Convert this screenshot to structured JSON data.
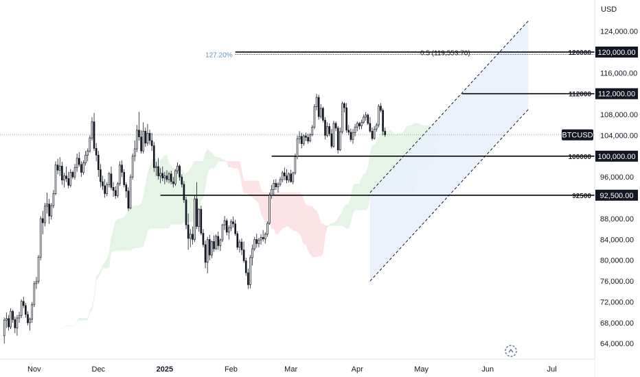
{
  "currency": "USD",
  "symbol": "BTCUSD",
  "colors": {
    "candle": "#131722",
    "cloud_green": "#e6f4e8",
    "cloud_red": "#fbe3e6",
    "channel_fill": "#e8f0fc",
    "line": "#000000",
    "grid": "#e0e3eb",
    "fib_blue": "#6a8fc8"
  },
  "chart_data": {
    "type": "candlestick",
    "ylim": [
      61000,
      130000
    ],
    "y_ticks": [
      {
        "value": 64000,
        "label": "64,000.00"
      },
      {
        "value": 68000,
        "label": "68,000.00"
      },
      {
        "value": 72000,
        "label": "72,000.00"
      },
      {
        "value": 76000,
        "label": "76,000.00"
      },
      {
        "value": 80000,
        "label": "80,000.00"
      },
      {
        "value": 84000,
        "label": "84,000.00"
      },
      {
        "value": 88000,
        "label": "88,000.00"
      },
      {
        "value": 96000,
        "label": "96,000.00"
      },
      {
        "value": 104000,
        "label": "104,000.00"
      },
      {
        "value": 108000,
        "label": "108,000.00"
      },
      {
        "value": 116000,
        "label": "116,000.00"
      },
      {
        "value": 124000,
        "label": "124,000.00"
      }
    ],
    "x_ticks": [
      {
        "label": "Nov",
        "day": 1,
        "bold": false
      },
      {
        "label": "Dec",
        "day": 31,
        "bold": false
      },
      {
        "label": "2025",
        "day": 62,
        "bold": true
      },
      {
        "label": "Feb",
        "day": 93,
        "bold": false
      },
      {
        "label": "Mar",
        "day": 121,
        "bold": false
      },
      {
        "label": "Apr",
        "day": 152,
        "bold": false
      },
      {
        "label": "May",
        "day": 182,
        "bold": false
      },
      {
        "label": "Jun",
        "day": 213,
        "bold": false
      },
      {
        "label": "Jul",
        "day": 243,
        "bold": false
      }
    ],
    "x_day_range": [
      -15,
      263
    ],
    "levels": [
      {
        "value": 120000,
        "label": "120000",
        "tag": "120,000.00",
        "start_day": 95
      },
      {
        "value": 112000,
        "label": "112000",
        "tag": "112,000.00",
        "start_day": 201
      },
      {
        "value": 100000,
        "label": "100000",
        "tag": "100,000.00",
        "start_day": 112
      },
      {
        "value": 92500,
        "label": "92500",
        "tag": "92,500.00",
        "start_day": 60
      }
    ],
    "fibonacci": {
      "value": 119553.7,
      "left_label": "127.20%",
      "center_label": "0.5 (119,553.70)",
      "start_day": 95
    },
    "channel": {
      "start_day": 158,
      "end_day": 232,
      "lower_start": 76000,
      "lower_end": 109000,
      "upper_start": 93000,
      "upper_end": 126000
    },
    "last_price": 104100,
    "ohlc": [
      [
        65500,
        69000,
        64000,
        68500
      ],
      [
        68500,
        70000,
        67000,
        68800
      ],
      [
        68800,
        69500,
        66500,
        67200
      ],
      [
        67200,
        70800,
        66800,
        70200
      ],
      [
        70200,
        70500,
        68000,
        68600
      ],
      [
        68600,
        69200,
        66000,
        67000
      ],
      [
        67000,
        69500,
        65500,
        68900
      ],
      [
        68900,
        70100,
        68000,
        69400
      ],
      [
        69400,
        72500,
        68900,
        72100
      ],
      [
        72100,
        73000,
        70800,
        71300
      ],
      [
        71300,
        71800,
        69000,
        69600
      ],
      [
        69600,
        70200,
        67500,
        68000
      ],
      [
        68000,
        69000,
        66500,
        68700
      ],
      [
        68700,
        72000,
        68000,
        71500
      ],
      [
        71500,
        76000,
        71000,
        75500
      ],
      [
        75500,
        76800,
        74500,
        75900
      ],
      [
        75900,
        81000,
        75500,
        80600
      ],
      [
        80600,
        88500,
        80000,
        88000
      ],
      [
        88000,
        89500,
        85000,
        87200
      ],
      [
        87200,
        91000,
        86500,
        90400
      ],
      [
        90400,
        93000,
        89000,
        90800
      ],
      [
        90800,
        91800,
        87000,
        88500
      ],
      [
        88500,
        91000,
        87800,
        90500
      ],
      [
        90500,
        93500,
        90000,
        92800
      ],
      [
        92800,
        99000,
        92500,
        98300
      ],
      [
        98300,
        99500,
        96500,
        97300
      ],
      [
        97300,
        99800,
        96200,
        98100
      ],
      [
        98100,
        98900,
        94500,
        95400
      ],
      [
        95400,
        96800,
        94000,
        96200
      ],
      [
        96200,
        98000,
        95000,
        95700
      ],
      [
        95700,
        97000,
        93800,
        94400
      ],
      [
        94400,
        97500,
        94000,
        96900
      ],
      [
        96900,
        97200,
        95600,
        96000
      ],
      [
        96000,
        98500,
        95500,
        97800
      ],
      [
        97800,
        100500,
        97000,
        99600
      ],
      [
        99600,
        100800,
        98000,
        98400
      ],
      [
        98400,
        99000,
        96000,
        96900
      ],
      [
        96900,
        99200,
        96400,
        98700
      ],
      [
        98700,
        101000,
        98200,
        100200
      ],
      [
        100200,
        101500,
        99000,
        101000
      ],
      [
        101000,
        104000,
        100600,
        103500
      ],
      [
        103500,
        107500,
        103000,
        106600
      ],
      [
        106600,
        108300,
        101000,
        101500
      ],
      [
        101500,
        102500,
        99000,
        100200
      ],
      [
        100200,
        101000,
        96000,
        97400
      ],
      [
        97400,
        98500,
        94000,
        95100
      ],
      [
        95100,
        96200,
        93500,
        94300
      ],
      [
        94300,
        95600,
        92000,
        92800
      ],
      [
        92800,
        95000,
        92300,
        94500
      ],
      [
        94500,
        97000,
        94000,
        96600
      ],
      [
        96600,
        98000,
        93500,
        94000
      ],
      [
        94000,
        95000,
        92200,
        93400
      ],
      [
        93400,
        94200,
        91800,
        92400
      ],
      [
        92400,
        95000,
        92000,
        94700
      ],
      [
        94700,
        99000,
        94300,
        98300
      ],
      [
        98300,
        99200,
        96000,
        96900
      ],
      [
        96900,
        97500,
        94000,
        94500
      ],
      [
        94500,
        95000,
        92000,
        93300
      ],
      [
        93300,
        94000,
        89500,
        90000
      ],
      [
        90000,
        96500,
        89800,
        96000
      ],
      [
        96000,
        100500,
        95500,
        100000
      ],
      [
        100000,
        103000,
        99000,
        101400
      ],
      [
        101400,
        106000,
        100800,
        105000
      ],
      [
        105000,
        108500,
        103000,
        103700
      ],
      [
        103700,
        105000,
        100500,
        101000
      ],
      [
        101000,
        106500,
        100500,
        104800
      ],
      [
        104800,
        105500,
        101800,
        102500
      ],
      [
        102500,
        106200,
        102000,
        104400
      ],
      [
        104400,
        105100,
        102200,
        103000
      ],
      [
        103000,
        104500,
        101000,
        102000
      ],
      [
        102000,
        102700,
        97000,
        97800
      ],
      [
        97800,
        98900,
        96200,
        98000
      ],
      [
        98000,
        99600,
        95500,
        96200
      ],
      [
        96200,
        97700,
        94800,
        96700
      ],
      [
        96700,
        98000,
        95200,
        95800
      ],
      [
        95800,
        97000,
        94600,
        96200
      ],
      [
        96200,
        97300,
        95000,
        95500
      ],
      [
        95500,
        97000,
        94800,
        96600
      ],
      [
        96600,
        97200,
        94600,
        95100
      ],
      [
        95100,
        96000,
        94000,
        94700
      ],
      [
        94700,
        97500,
        94300,
        97200
      ],
      [
        97200,
        98800,
        96600,
        98100
      ],
      [
        98100,
        98400,
        95300,
        96000
      ],
      [
        96000,
        96500,
        94000,
        94600
      ],
      [
        94600,
        95200,
        91000,
        91600
      ],
      [
        91600,
        92200,
        86000,
        86800
      ],
      [
        86800,
        89000,
        82000,
        84200
      ],
      [
        84200,
        86000,
        82500,
        85000
      ],
      [
        85000,
        86500,
        83000,
        84000
      ],
      [
        84000,
        92500,
        83500,
        91800
      ],
      [
        91800,
        95000,
        86000,
        86500
      ],
      [
        86500,
        90000,
        85500,
        89800
      ],
      [
        89800,
        90500,
        84800,
        85200
      ],
      [
        85200,
        86000,
        82500,
        83000
      ],
      [
        83000,
        83800,
        78500,
        79600
      ],
      [
        79600,
        84500,
        77500,
        84000
      ],
      [
        84000,
        84900,
        80000,
        81000
      ],
      [
        81000,
        83800,
        80400,
        83600
      ],
      [
        83600,
        84800,
        81600,
        82200
      ],
      [
        82200,
        85000,
        82000,
        84600
      ],
      [
        84600,
        85500,
        82000,
        82800
      ],
      [
        82800,
        84200,
        81800,
        83900
      ],
      [
        83900,
        87000,
        83500,
        86800
      ],
      [
        86800,
        88500,
        85800,
        87600
      ],
      [
        87600,
        88000,
        84800,
        85400
      ],
      [
        85400,
        86700,
        84000,
        86200
      ],
      [
        86200,
        87900,
        85600,
        87400
      ],
      [
        87400,
        88400,
        86300,
        87000
      ],
      [
        87000,
        87800,
        84700,
        85100
      ],
      [
        85100,
        85600,
        82000,
        82500
      ],
      [
        82500,
        84000,
        81500,
        83500
      ],
      [
        83500,
        84200,
        81000,
        82000
      ],
      [
        82000,
        83600,
        79500,
        79900
      ],
      [
        79900,
        80500,
        77000,
        77600
      ],
      [
        77600,
        78400,
        74500,
        75300
      ],
      [
        75300,
        81000,
        74600,
        80500
      ],
      [
        80500,
        83000,
        79000,
        82200
      ],
      [
        82200,
        84500,
        81800,
        84000
      ],
      [
        84000,
        85100,
        82400,
        83200
      ],
      [
        83200,
        84300,
        82500,
        83900
      ],
      [
        83900,
        85000,
        83000,
        84400
      ],
      [
        84400,
        85800,
        83600,
        84100
      ],
      [
        84100,
        85400,
        83200,
        85000
      ],
      [
        85000,
        87500,
        84500,
        87100
      ],
      [
        87100,
        93000,
        86800,
        92500
      ],
      [
        92500,
        94500,
        91800,
        93600
      ],
      [
        93600,
        95500,
        92600,
        94800
      ],
      [
        94800,
        95600,
        93500,
        94100
      ],
      [
        94100,
        95000,
        93000,
        94600
      ],
      [
        94600,
        96000,
        94200,
        95500
      ],
      [
        95500,
        97200,
        95000,
        96800
      ],
      [
        96800,
        97800,
        95400,
        96200
      ],
      [
        96200,
        97500,
        94800,
        95400
      ],
      [
        95400,
        96900,
        94900,
        96600
      ],
      [
        96600,
        97400,
        94900,
        95100
      ],
      [
        95100,
        97000,
        94600,
        96800
      ],
      [
        96800,
        100500,
        96400,
        99900
      ],
      [
        99900,
        104000,
        99400,
        103300
      ],
      [
        103300,
        104800,
        102400,
        103800
      ],
      [
        103800,
        104500,
        101500,
        102400
      ],
      [
        102400,
        104200,
        102000,
        103900
      ],
      [
        103900,
        104500,
        102900,
        103600
      ],
      [
        103600,
        104300,
        102400,
        102900
      ],
      [
        102900,
        104400,
        102700,
        104100
      ],
      [
        104100,
        106000,
        103800,
        105600
      ],
      [
        105600,
        110000,
        105200,
        109500
      ],
      [
        109500,
        112000,
        108800,
        111300
      ],
      [
        111300,
        111800,
        107000,
        107600
      ],
      [
        107600,
        110000,
        107200,
        109200
      ],
      [
        109200,
        109500,
        106500,
        106900
      ],
      [
        106900,
        107500,
        103200,
        104000
      ],
      [
        104000,
        106500,
        103600,
        105700
      ],
      [
        105700,
        106300,
        103800,
        104300
      ],
      [
        104300,
        105200,
        101500,
        101900
      ],
      [
        101900,
        106800,
        101600,
        106300
      ],
      [
        106300,
        106700,
        104800,
        105400
      ],
      [
        105400,
        105800,
        100500,
        101200
      ],
      [
        101200,
        105500,
        101000,
        104700
      ],
      [
        104700,
        110500,
        104300,
        110100
      ],
      [
        110100,
        110400,
        108400,
        109300
      ],
      [
        109300,
        110200,
        104500,
        105000
      ],
      [
        105000,
        106000,
        104000,
        104600
      ],
      [
        104600,
        105300,
        102800,
        103200
      ],
      [
        103200,
        105200,
        102400,
        104500
      ],
      [
        104500,
        106200,
        103800,
        105600
      ],
      [
        105600,
        106700,
        104800,
        106300
      ],
      [
        106300,
        106600,
        105100,
        105800
      ],
      [
        105800,
        107000,
        105200,
        106500
      ],
      [
        106500,
        108000,
        106200,
        107500
      ],
      [
        107500,
        108500,
        106800,
        107900
      ],
      [
        107900,
        108200,
        106000,
        106300
      ],
      [
        106300,
        107500,
        104500,
        104800
      ],
      [
        104800,
        105500,
        103000,
        103400
      ],
      [
        103400,
        105800,
        103200,
        105200
      ],
      [
        105200,
        106400,
        104700,
        106000
      ],
      [
        106000,
        110000,
        105500,
        109600
      ],
      [
        109600,
        110200,
        108400,
        108800
      ],
      [
        108800,
        109200,
        104000,
        104800
      ],
      [
        104800,
        105500,
        103700,
        104100
      ]
    ]
  }
}
